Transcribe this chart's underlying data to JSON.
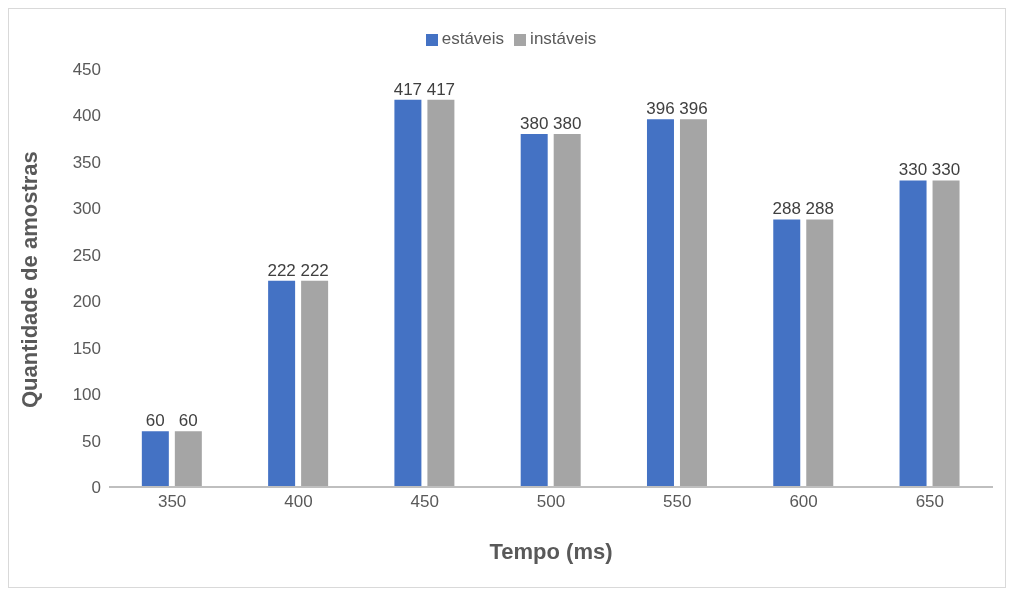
{
  "chart_data": {
    "type": "bar",
    "xlabel": "Tempo (ms)",
    "ylabel": "Quantidade de amostras",
    "categories": [
      "350",
      "400",
      "450",
      "500",
      "550",
      "600",
      "650"
    ],
    "series": [
      {
        "name": "estáveis",
        "color": "#4472c4",
        "values": [
          60,
          222,
          417,
          380,
          396,
          288,
          330
        ]
      },
      {
        "name": "instáveis",
        "color": "#a5a5a5",
        "values": [
          60,
          222,
          417,
          380,
          396,
          288,
          330
        ]
      }
    ],
    "ylim": [
      0,
      450
    ],
    "yticks": [
      0,
      50,
      100,
      150,
      200,
      250,
      300,
      350,
      400,
      450
    ],
    "grid": false,
    "legend": "top",
    "data_labels": true
  }
}
